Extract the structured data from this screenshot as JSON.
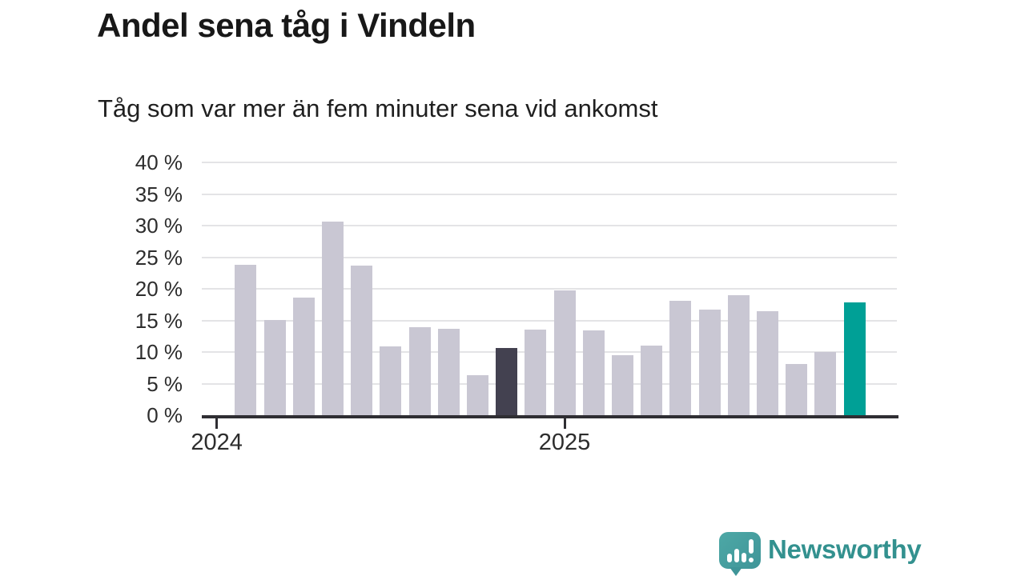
{
  "title": "Andel sena tåg i Vindeln",
  "subtitle": "Tåg som var mer än fem minuter sena vid ankomst",
  "chart_data": {
    "type": "bar",
    "title": "Andel sena tåg i Vindeln",
    "subtitle": "Tåg som var mer än fem minuter sena vid ankomst",
    "unit": "%",
    "x": [
      "2024-02",
      "2024-03",
      "2024-04",
      "2024-05",
      "2024-06",
      "2024-07",
      "2024-08",
      "2024-09",
      "2024-10",
      "2024-11",
      "2024-12",
      "2025-01",
      "2025-02",
      "2025-03",
      "2025-04",
      "2025-05",
      "2025-06",
      "2025-07",
      "2025-08",
      "2025-09",
      "2025-10",
      "2025-11"
    ],
    "values": [
      23.8,
      15.1,
      18.6,
      30.6,
      23.7,
      10.9,
      13.9,
      13.7,
      6.3,
      10.6,
      13.5,
      19.8,
      13.4,
      9.5,
      11.0,
      18.1,
      16.7,
      19.0,
      16.4,
      8.1,
      10.0,
      17.9
    ],
    "ylim": [
      0,
      40
    ],
    "grid": true,
    "legend": "none",
    "yticks": [
      {
        "value": 40,
        "label": "40 %"
      },
      {
        "value": 35,
        "label": "35 %"
      },
      {
        "value": 30,
        "label": "30 %"
      },
      {
        "value": 25,
        "label": "25 %"
      },
      {
        "value": 20,
        "label": "20 %"
      },
      {
        "value": 15,
        "label": "15 %"
      },
      {
        "value": 10,
        "label": "10 %"
      },
      {
        "value": 5,
        "label": "5 %"
      },
      {
        "value": 0,
        "label": "0 %"
      }
    ],
    "xticks": [
      {
        "label": "2024",
        "month_offset": -1
      },
      {
        "label": "2025",
        "month_offset": 11
      }
    ],
    "highlight_previous_year_index": 9,
    "highlight_latest_index": 21,
    "colors": {
      "bar": "#c9c7d3",
      "highlight_previous": "#434150",
      "highlight_latest": "#00a096",
      "grid": "#e4e4e6",
      "axis": "#2f2e33",
      "tick_label": "#2d2d2d"
    }
  },
  "branding": {
    "logo_text": "Newsworthy",
    "logo_text_color": "#33918f",
    "logo_icon": "speech-bubble-bar-chart-icon",
    "logo_icon_color": "#47a09f"
  }
}
